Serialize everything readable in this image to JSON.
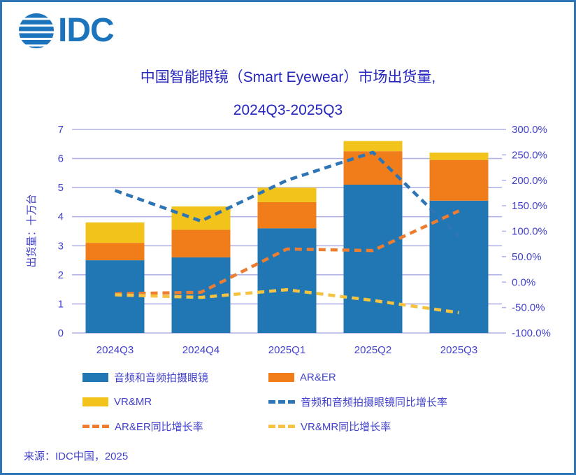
{
  "theme": {
    "text_color": "#4242CC",
    "title_color": "#2626BE",
    "gridline_color": "#B3B3E6",
    "frame_border_color": "#2E75B6",
    "logo_color": "#1C75BC",
    "background": "#FFFFFF"
  },
  "logo": {
    "text": "IDC"
  },
  "source": "来源：IDC中国，2025",
  "chart_data": {
    "type": "combo-stacked-bar-line",
    "title_lines": [
      "中国智能眼镜（Smart Eyewear）市场出货量,",
      "2024Q3-2025Q3"
    ],
    "categories": [
      "2024Q3",
      "2024Q4",
      "2025Q1",
      "2025Q2",
      "2025Q3"
    ],
    "bar_series": [
      {
        "name": "音频和音频拍摄眼镜",
        "color": "#2077B4",
        "values": [
          2.5,
          2.6,
          3.6,
          5.1,
          4.55
        ]
      },
      {
        "name": "AR&ER",
        "color": "#F07D1A",
        "values": [
          0.6,
          0.95,
          0.9,
          1.15,
          1.4
        ]
      },
      {
        "name": "VR&MR",
        "color": "#F2C31B",
        "values": [
          0.7,
          0.8,
          0.5,
          0.35,
          0.25
        ]
      }
    ],
    "line_series": [
      {
        "name": "音频和音频拍摄眼镜同比增长率",
        "color": "#2E75B6",
        "values_pct": [
          180,
          120,
          200,
          255,
          90
        ]
      },
      {
        "name": "AR&ER同比增长率",
        "color": "#ED7D31",
        "values_pct": [
          -23,
          -20,
          65,
          62,
          140
        ]
      },
      {
        "name": "VR&MR同比增长率",
        "color": "#F5C242",
        "values_pct": [
          -25,
          -30,
          -15,
          -36,
          -60
        ]
      }
    ],
    "left_axis": {
      "title": "出货量：十万台",
      "min": 0,
      "max": 7,
      "step": 1,
      "tick_labels": [
        "0",
        "1",
        "2",
        "3",
        "4",
        "5",
        "6",
        "7"
      ]
    },
    "right_axis": {
      "min": -100,
      "max": 300,
      "step": 50,
      "tick_labels": [
        "-100.0%",
        "-50.0%",
        "0.0%",
        "50.0%",
        "100.0%",
        "150.0%",
        "200.0%",
        "250.0%",
        "300.0%"
      ]
    },
    "grid": true,
    "legend_position": "bottom"
  },
  "legend": {
    "items": [
      {
        "label": "音频和音频拍摄眼镜",
        "swatch": "bar",
        "color": "#2077B4"
      },
      {
        "label": "AR&ER",
        "swatch": "bar",
        "color": "#F07D1A"
      },
      {
        "label": "VR&MR",
        "swatch": "bar",
        "color": "#F2C31B"
      },
      {
        "label": "音频和音频拍摄眼镜同比增长率",
        "swatch": "dash",
        "color": "#2E75B6"
      },
      {
        "label": "AR&ER同比增长率",
        "swatch": "dash",
        "color": "#ED7D31"
      },
      {
        "label": "VR&MR同比增长率",
        "swatch": "dash",
        "color": "#F5C242"
      }
    ]
  }
}
